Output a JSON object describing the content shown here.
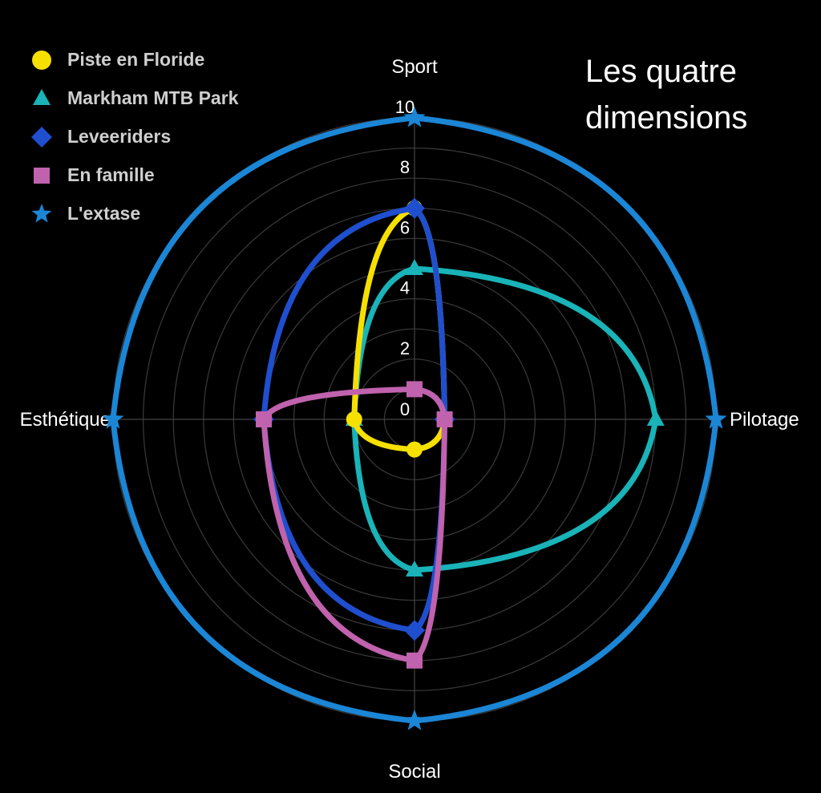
{
  "chart_data": {
    "type": "radar",
    "title": "Les quatre dimensions",
    "axes": [
      "Sport",
      "Pilotage",
      "Social",
      "Esthétique"
    ],
    "rlim": [
      0,
      10
    ],
    "ticks": [
      "0",
      "2",
      "4",
      "6",
      "8",
      "10"
    ],
    "legend_position": "top-left",
    "series": [
      {
        "name": "Piste en Floride",
        "values": [
          7,
          1,
          1,
          2
        ],
        "color": "#f5e000",
        "marker": "circle"
      },
      {
        "name": "Markham MTB Park",
        "values": [
          5,
          8,
          5,
          2
        ],
        "color": "#19b3b8",
        "marker": "triangle"
      },
      {
        "name": "Leveeriders",
        "values": [
          7,
          1,
          7,
          5
        ],
        "color": "#1f4fcf",
        "marker": "diamond"
      },
      {
        "name": "En famille",
        "values": [
          1,
          1,
          8,
          5
        ],
        "color": "#c062ad",
        "marker": "square"
      },
      {
        "name": "L'extase",
        "values": [
          10,
          10,
          10,
          10
        ],
        "color": "#1b86d6",
        "marker": "star"
      }
    ]
  }
}
